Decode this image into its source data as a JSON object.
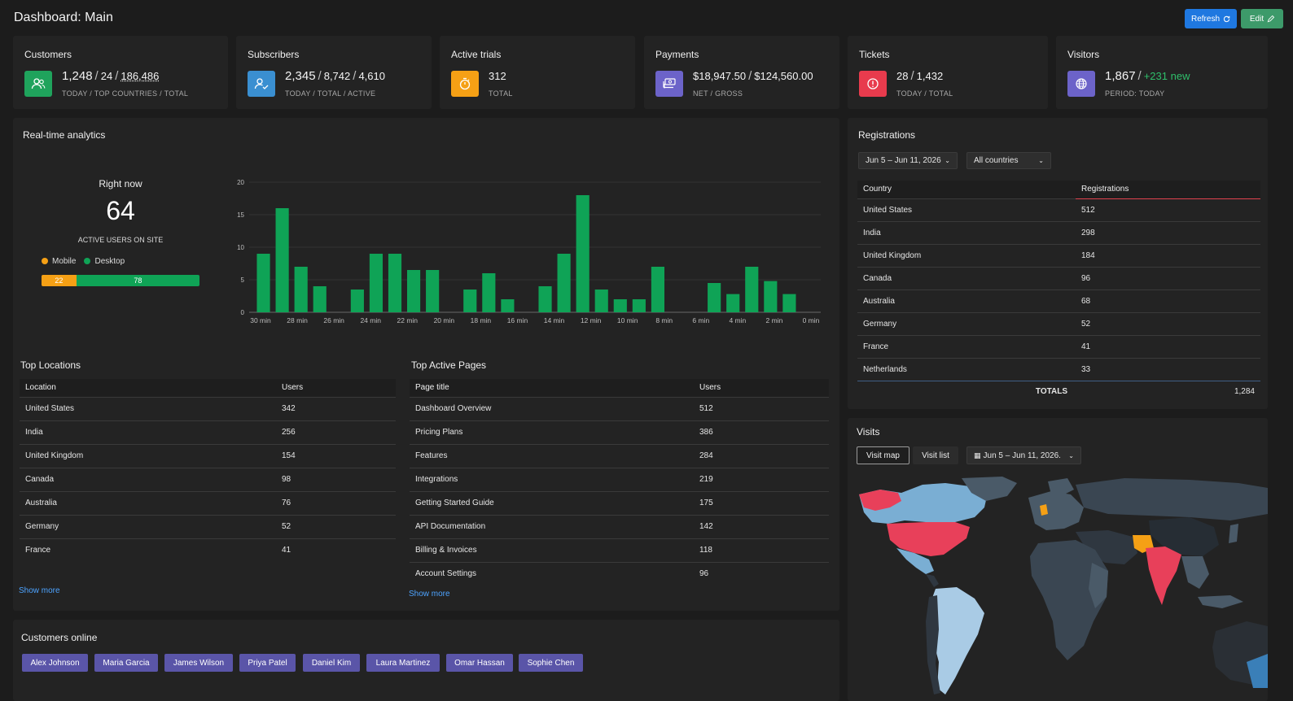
{
  "header": {
    "title": "Dashboard: Main",
    "refresh_label": "Refresh",
    "edit_label": "Edit"
  },
  "stats": {
    "customers": {
      "title": "Customers",
      "today": "1,248",
      "top_countries": "24",
      "total": "186,486",
      "sub": "TODAY / TOP COUNTRIES / TOTAL",
      "icon": "users-icon",
      "color": "#1fa35c"
    },
    "subscribers": {
      "title": "Subscribers",
      "today": "2,345",
      "total": "8,742",
      "active": "4,610",
      "sub": "TODAY / TOTAL / ACTIVE",
      "icon": "user-check-icon",
      "color": "#3a8fd1"
    },
    "trials": {
      "title": "Active trials",
      "total": "312",
      "sub": "TOTAL",
      "icon": "stopwatch-icon",
      "color": "#f5a015"
    },
    "payments": {
      "title": "Payments",
      "net": "$18,947.50",
      "gross": "$124,560.00",
      "sub": "NET / GROSS",
      "icon": "money-stack-icon",
      "color": "#6c63c9"
    },
    "tickets": {
      "title": "Tickets",
      "today": "28",
      "total": "1,432",
      "sub": "TODAY / TOTAL",
      "icon": "alert-circle-icon",
      "color": "#e83b4d"
    },
    "visitors": {
      "title": "Visitors",
      "count": "1,867",
      "new": "+231 new",
      "sub": "PERIOD: TODAY",
      "icon": "globe-icon",
      "color": "#6c63c9"
    }
  },
  "realtime": {
    "title": "Real-time analytics",
    "right_now": "Right now",
    "active_users": "64",
    "active_label": "ACTIVE USERS ON SITE",
    "mobile_label": "Mobile",
    "desktop_label": "Desktop",
    "mobile_value": 22,
    "desktop_value": 78,
    "mobile_color": "#f5a015",
    "desktop_color": "#0fa356"
  },
  "chart_data": {
    "type": "bar",
    "x": [
      30,
      29,
      28,
      27,
      26,
      25,
      24,
      23,
      22,
      21,
      20,
      19,
      18,
      17,
      16,
      15,
      14,
      13,
      12,
      11,
      10,
      9,
      8,
      7,
      6,
      5,
      4,
      3,
      2,
      1
    ],
    "values": [
      9,
      16,
      7,
      4,
      0,
      3.5,
      9,
      9,
      6.5,
      6.5,
      0,
      3.5,
      6,
      2,
      0,
      4,
      9,
      18,
      3.5,
      2,
      2,
      7,
      0,
      0,
      4.5,
      2.8,
      7,
      4.8,
      2.8,
      0
    ],
    "tick_labels": [
      "30 min",
      "28 min",
      "26 min",
      "24 min",
      "22 min",
      "20 min",
      "18 min",
      "16 min",
      "14 min",
      "12 min",
      "10 min",
      "8 min",
      "6 min",
      "4 min",
      "2 min",
      "0 min"
    ],
    "y_ticks": [
      0,
      5,
      10,
      15,
      20
    ],
    "ylim": [
      0,
      20
    ],
    "grid": true,
    "color": "#0fa356"
  },
  "top_locations": {
    "title": "Top Locations",
    "headers": [
      "Location",
      "Users"
    ],
    "rows": [
      [
        "United States",
        "342"
      ],
      [
        "India",
        "256"
      ],
      [
        "United Kingdom",
        "154"
      ],
      [
        "Canada",
        "98"
      ],
      [
        "Australia",
        "76"
      ],
      [
        "Germany",
        "52"
      ],
      [
        "France",
        "41"
      ]
    ],
    "show_more": "Show more"
  },
  "top_pages": {
    "title": "Top Active Pages",
    "headers": [
      "Page title",
      "Users"
    ],
    "rows": [
      [
        "Dashboard Overview",
        "512"
      ],
      [
        "Pricing Plans",
        "386"
      ],
      [
        "Features",
        "284"
      ],
      [
        "Integrations",
        "219"
      ],
      [
        "Getting Started Guide",
        "175"
      ],
      [
        "API Documentation",
        "142"
      ],
      [
        "Billing & Invoices",
        "118"
      ],
      [
        "Account Settings",
        "96"
      ]
    ],
    "show_more": "Show more"
  },
  "registrations": {
    "title": "Registrations",
    "date_filter": "Jun 5 – Jun 11, 2026",
    "country_filter": "All countries",
    "headers": [
      "Country",
      "Registrations"
    ],
    "rows": [
      [
        "United States",
        "512"
      ],
      [
        "India",
        "298"
      ],
      [
        "United Kingdom",
        "184"
      ],
      [
        "Canada",
        "96"
      ],
      [
        "Australia",
        "68"
      ],
      [
        "Germany",
        "52"
      ],
      [
        "France",
        "41"
      ],
      [
        "Netherlands",
        "33"
      ]
    ],
    "totals_label": "TOTALS",
    "totals_value": "1,284"
  },
  "visits": {
    "title": "Visits",
    "tab_map": "Visit map",
    "tab_list": "Visit list",
    "date_filter": "Jun 5 – Jun 11, 2026."
  },
  "customers_online": {
    "title": "Customers online",
    "names": [
      "Alex Johnson",
      "Maria Garcia",
      "James Wilson",
      "Priya Patel",
      "Daniel Kim",
      "Laura Martinez",
      "Omar Hassan",
      "Sophie Chen"
    ]
  }
}
